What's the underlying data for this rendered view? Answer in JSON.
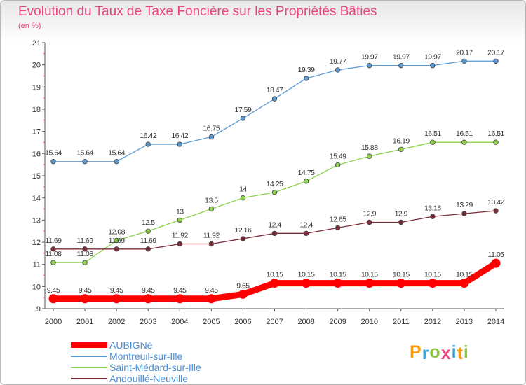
{
  "header": {
    "title": "Evolution du Taux de Taxe Foncière sur les Propriétés Bâties",
    "unit": "(en %)"
  },
  "logo": {
    "letters": [
      "P",
      "r",
      "o",
      "x",
      "i",
      "t",
      "i"
    ],
    "colors": [
      "#f39c12",
      "#3aa0d8",
      "#8cc63f",
      "#e8457a",
      "#3aa0d8",
      "#f39c12",
      "#8cc63f"
    ]
  },
  "chart_data": {
    "type": "line",
    "x": [
      "2000",
      "2001",
      "2002",
      "2003",
      "2004",
      "2005",
      "2006",
      "2007",
      "2008",
      "2009",
      "2010",
      "2011",
      "2012",
      "2013",
      "2014"
    ],
    "ylim": [
      9,
      21
    ],
    "yticks": [
      "9",
      "10",
      "11",
      "12",
      "13",
      "14",
      "15",
      "16",
      "17",
      "18",
      "19",
      "20",
      "21"
    ],
    "grid": false,
    "legend_position": "bottom-left",
    "series": [
      {
        "name": "AUBIGNé",
        "color": "#ff0000",
        "values": [
          9.45,
          9.45,
          9.45,
          9.45,
          9.45,
          9.45,
          9.65,
          10.15,
          10.15,
          10.15,
          10.15,
          10.15,
          10.15,
          10.15,
          11.05
        ],
        "labels": [
          "9.45",
          "9.45",
          "9.45",
          "9.45",
          "9.45",
          "9.45",
          "9.65",
          "10.15",
          "10.15",
          "10.15",
          "10.15",
          "10.15",
          "10.15",
          "10.15",
          "11.05"
        ]
      },
      {
        "name": "Montreuil-sur-Ille",
        "color": "#5b9bd5",
        "values": [
          15.64,
          15.64,
          15.64,
          16.42,
          16.42,
          16.75,
          17.59,
          18.47,
          19.39,
          19.77,
          19.97,
          19.97,
          19.97,
          20.17,
          20.17
        ],
        "labels": [
          "15.64",
          "15.64",
          "15.64",
          "16.42",
          "16.42",
          "16.75",
          "17.59",
          "18.47",
          "19.39",
          "19.77",
          "19.97",
          "19.97",
          "19.97",
          "20.17",
          "20.17"
        ]
      },
      {
        "name": "Saint-Médard-sur-Ille",
        "color": "#8fd14f",
        "values": [
          11.08,
          11.08,
          12.08,
          12.5,
          13,
          13.5,
          14,
          14.25,
          14.75,
          15.49,
          15.88,
          16.19,
          16.51,
          16.51,
          16.51
        ],
        "labels": [
          "11.08",
          "11.08",
          "12.08",
          "12.5",
          "13",
          "13.5",
          "14",
          "14.25",
          "14.75",
          "15.49",
          "15.88",
          "16.19",
          "16.51",
          "16.51",
          "16.51"
        ]
      },
      {
        "name": "Andouillé-Neuville",
        "color": "#7b2d3a",
        "values": [
          11.69,
          11.69,
          11.69,
          11.69,
          11.92,
          11.92,
          12.16,
          12.4,
          12.4,
          12.65,
          12.9,
          12.9,
          13.16,
          13.29,
          13.42
        ],
        "labels": [
          "11.69",
          "11.69",
          "11.69",
          "11.69",
          "11.92",
          "11.92",
          "12.16",
          "12.4",
          "12.4",
          "12.65",
          "12.9",
          "12.9",
          "13.16",
          "13.29",
          "13.42"
        ]
      }
    ]
  }
}
